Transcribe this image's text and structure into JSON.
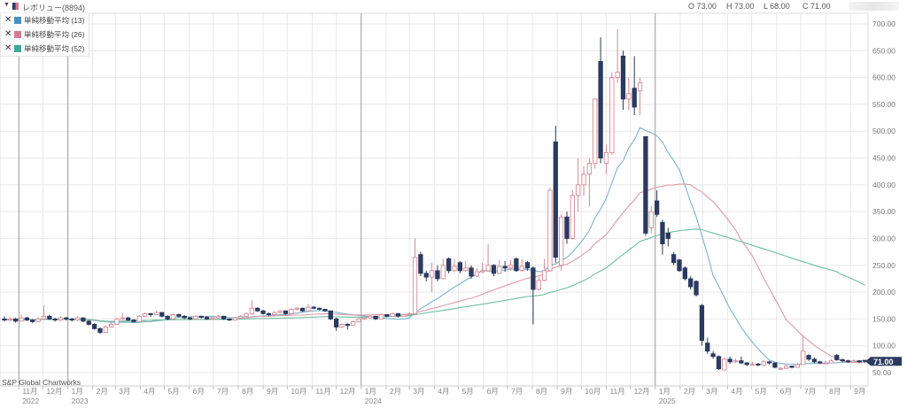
{
  "header": {
    "collapse_icon": "triangle-down-icon",
    "symbol_icon": "candlestick-icon",
    "title": "レボリュー(8894)",
    "ohlc": {
      "open": "O 73.00",
      "high": "H 73.00",
      "low": "L 68.00",
      "close": "C 71.00"
    }
  },
  "legend": [
    {
      "label": "単純移動平均 (13)",
      "period": 13,
      "color": "#4a90c2",
      "line_color": "#7ab3cc"
    },
    {
      "label": "単純移動平均 (26)",
      "period": 26,
      "color": "#d77a8f",
      "line_color": "#dd9aa5"
    },
    {
      "label": "単純移動平均 (52)",
      "period": 52,
      "color": "#3aa99a",
      "line_color": "#6dbf9f"
    }
  ],
  "credit": "S&P Global Chartworks",
  "colors": {
    "up": "#d38a96",
    "down": "#2b3a5e",
    "grid": "#e8e8e8",
    "year_line": "#999999",
    "price_tag": "#2b3a5e"
  },
  "chart_data": {
    "type": "candlestick",
    "interval": "weekly",
    "first_week": "2022-10-14",
    "ylim": [
      25,
      720
    ],
    "yticks": [
      50,
      100,
      150,
      200,
      250,
      300,
      350,
      400,
      450,
      500,
      550,
      600,
      650,
      700
    ],
    "ytick_labels": [
      "50.00",
      "100.00",
      "150.00",
      "200.00",
      "250.00",
      "300.00",
      "350.00",
      "400.00",
      "450.00",
      "500.00",
      "550.00",
      "600.00",
      "650.00",
      "700.00"
    ],
    "last_price_label": "71.00",
    "grid": true,
    "months": [
      {
        "date": "2022-11",
        "label": "11月",
        "year": "2022"
      },
      {
        "date": "2022-12",
        "label": "12月"
      },
      {
        "date": "2023-01",
        "label": "1月",
        "year": "2023"
      },
      {
        "date": "2023-02",
        "label": "2月"
      },
      {
        "date": "2023-03",
        "label": "3月"
      },
      {
        "date": "2023-04",
        "label": "4月"
      },
      {
        "date": "2023-05",
        "label": "5月"
      },
      {
        "date": "2023-06",
        "label": "6月"
      },
      {
        "date": "2023-07",
        "label": "7月"
      },
      {
        "date": "2023-08",
        "label": "8月"
      },
      {
        "date": "2023-09",
        "label": "9月"
      },
      {
        "date": "2023-10",
        "label": "10月"
      },
      {
        "date": "2023-11",
        "label": "11月"
      },
      {
        "date": "2023-12",
        "label": "12月"
      },
      {
        "date": "2024-01",
        "label": "1月",
        "year": "2024"
      },
      {
        "date": "2024-02",
        "label": "2月"
      },
      {
        "date": "2024-03",
        "label": "3月"
      },
      {
        "date": "2024-04",
        "label": "4月"
      },
      {
        "date": "2024-05",
        "label": "5月"
      },
      {
        "date": "2024-06",
        "label": "6月"
      },
      {
        "date": "2024-07",
        "label": "7月"
      },
      {
        "date": "2024-08",
        "label": "8月"
      },
      {
        "date": "2024-09",
        "label": "9月"
      },
      {
        "date": "2024-10",
        "label": "10月"
      },
      {
        "date": "2024-11",
        "label": "11月"
      },
      {
        "date": "2024-12",
        "label": "12月"
      },
      {
        "date": "2025-01",
        "label": "1月",
        "year": "2025"
      },
      {
        "date": "2025-02",
        "label": "2月"
      },
      {
        "date": "2025-03",
        "label": "3月"
      },
      {
        "date": "2025-04",
        "label": "4月"
      },
      {
        "date": "2025-05",
        "label": "5月"
      },
      {
        "date": "2025-06",
        "label": "6月"
      },
      {
        "date": "2025-07",
        "label": "7月"
      },
      {
        "date": "2025-08",
        "label": "8月"
      },
      {
        "date": "2025-09",
        "label": "9月"
      }
    ],
    "ohlc": [
      [
        150,
        155,
        145,
        148
      ],
      [
        148,
        153,
        145,
        150
      ],
      [
        150,
        152,
        143,
        146
      ],
      [
        146,
        158,
        145,
        152
      ],
      [
        152,
        154,
        146,
        148
      ],
      [
        148,
        150,
        142,
        145
      ],
      [
        145,
        153,
        144,
        150
      ],
      [
        150,
        175,
        148,
        155
      ],
      [
        155,
        158,
        148,
        150
      ],
      [
        150,
        152,
        145,
        148
      ],
      [
        148,
        155,
        146,
        152
      ],
      [
        152,
        154,
        147,
        150
      ],
      [
        150,
        152,
        145,
        148
      ],
      [
        148,
        155,
        146,
        152
      ],
      [
        152,
        153,
        144,
        146
      ],
      [
        146,
        148,
        138,
        140
      ],
      [
        140,
        142,
        130,
        132
      ],
      [
        132,
        134,
        122,
        125
      ],
      [
        125,
        138,
        124,
        135
      ],
      [
        135,
        143,
        134,
        140
      ],
      [
        140,
        152,
        139,
        150
      ],
      [
        150,
        160,
        148,
        152
      ],
      [
        152,
        154,
        146,
        148
      ],
      [
        148,
        150,
        143,
        145
      ],
      [
        145,
        157,
        144,
        155
      ],
      [
        155,
        162,
        153,
        160
      ],
      [
        160,
        161,
        154,
        158
      ],
      [
        158,
        165,
        157,
        162
      ],
      [
        162,
        163,
        153,
        155
      ],
      [
        155,
        157,
        148,
        150
      ],
      [
        150,
        160,
        149,
        158
      ],
      [
        158,
        160,
        153,
        155
      ],
      [
        155,
        157,
        150,
        152
      ],
      [
        152,
        154,
        148,
        150
      ],
      [
        150,
        157,
        149,
        155
      ],
      [
        155,
        156,
        151,
        153
      ],
      [
        153,
        155,
        148,
        150
      ],
      [
        150,
        154,
        149,
        152
      ],
      [
        152,
        157,
        151,
        155
      ],
      [
        155,
        156,
        148,
        150
      ],
      [
        150,
        151,
        146,
        148
      ],
      [
        148,
        154,
        147,
        152
      ],
      [
        152,
        157,
        151,
        155
      ],
      [
        155,
        162,
        154,
        160
      ],
      [
        160,
        185,
        158,
        170
      ],
      [
        170,
        172,
        163,
        165
      ],
      [
        165,
        167,
        158,
        160
      ],
      [
        160,
        162,
        155,
        158
      ],
      [
        158,
        165,
        157,
        162
      ],
      [
        162,
        167,
        160,
        165
      ],
      [
        165,
        166,
        158,
        160
      ],
      [
        160,
        170,
        159,
        168
      ],
      [
        168,
        172,
        166,
        170
      ],
      [
        170,
        171,
        163,
        165
      ],
      [
        165,
        178,
        164,
        172
      ],
      [
        172,
        174,
        168,
        170
      ],
      [
        170,
        171,
        166,
        168
      ],
      [
        168,
        169,
        163,
        165
      ],
      [
        165,
        166,
        148,
        150
      ],
      [
        150,
        152,
        128,
        135
      ],
      [
        135,
        142,
        133,
        140
      ],
      [
        140,
        142,
        130,
        138
      ],
      [
        138,
        147,
        137,
        145
      ],
      [
        145,
        152,
        144,
        150
      ],
      [
        150,
        154,
        148,
        152
      ],
      [
        152,
        157,
        150,
        155
      ],
      [
        155,
        156,
        148,
        150
      ],
      [
        150,
        160,
        149,
        158
      ],
      [
        158,
        159,
        153,
        155
      ],
      [
        155,
        162,
        154,
        160
      ],
      [
        160,
        161,
        153,
        155
      ],
      [
        155,
        160,
        154,
        158
      ],
      [
        158,
        162,
        156,
        160
      ],
      [
        160,
        300,
        158,
        265
      ],
      [
        270,
        275,
        230,
        235
      ],
      [
        235,
        240,
        220,
        228
      ],
      [
        228,
        255,
        200,
        240
      ],
      [
        240,
        250,
        220,
        225
      ],
      [
        225,
        262,
        224,
        250
      ],
      [
        262,
        265,
        235,
        240
      ],
      [
        240,
        262,
        238,
        248
      ],
      [
        255,
        258,
        235,
        240
      ],
      [
        240,
        258,
        238,
        245
      ],
      [
        245,
        250,
        225,
        230
      ],
      [
        230,
        245,
        228,
        238
      ],
      [
        238,
        255,
        236,
        240
      ],
      [
        240,
        290,
        238,
        250
      ],
      [
        250,
        252,
        230,
        235
      ],
      [
        235,
        260,
        233,
        248
      ],
      [
        248,
        258,
        238,
        245
      ],
      [
        245,
        260,
        240,
        250
      ],
      [
        262,
        265,
        238,
        240
      ],
      [
        240,
        262,
        238,
        248
      ],
      [
        255,
        258,
        240,
        245
      ],
      [
        245,
        248,
        140,
        205
      ],
      [
        205,
        228,
        203,
        222
      ],
      [
        222,
        262,
        220,
        240
      ],
      [
        240,
        395,
        238,
        390
      ],
      [
        480,
        510,
        255,
        265
      ],
      [
        250,
        345,
        240,
        340
      ],
      [
        340,
        350,
        290,
        300
      ],
      [
        300,
        390,
        298,
        380
      ],
      [
        380,
        450,
        350,
        400
      ],
      [
        400,
        435,
        380,
        420
      ],
      [
        420,
        450,
        360,
        440
      ],
      [
        440,
        560,
        430,
        560
      ],
      [
        630,
        675,
        440,
        450
      ],
      [
        440,
        475,
        420,
        460
      ],
      [
        460,
        610,
        455,
        600
      ],
      [
        600,
        690,
        590,
        610
      ],
      [
        640,
        650,
        540,
        560
      ],
      [
        560,
        600,
        540,
        570
      ],
      [
        580,
        640,
        530,
        545
      ],
      [
        575,
        600,
        530,
        590
      ],
      [
        490,
        490,
        305,
        310
      ],
      [
        320,
        360,
        310,
        350
      ],
      [
        370,
        390,
        340,
        345
      ],
      [
        330,
        335,
        270,
        290
      ],
      [
        310,
        320,
        285,
        300
      ],
      [
        270,
        275,
        250,
        255
      ],
      [
        260,
        262,
        238,
        240
      ],
      [
        245,
        248,
        222,
        225
      ],
      [
        225,
        230,
        205,
        210
      ],
      [
        220,
        222,
        192,
        195
      ],
      [
        175,
        178,
        100,
        110
      ],
      [
        105,
        115,
        85,
        90
      ],
      [
        85,
        90,
        76,
        80
      ],
      [
        80,
        82,
        55,
        57
      ],
      [
        55,
        78,
        54,
        75
      ],
      [
        75,
        80,
        66,
        70
      ],
      [
        70,
        76,
        68,
        72
      ],
      [
        72,
        80,
        66,
        68
      ],
      [
        68,
        70,
        62,
        65
      ],
      [
        65,
        70,
        63,
        66
      ],
      [
        66,
        68,
        62,
        64
      ],
      [
        64,
        74,
        63,
        70
      ],
      [
        70,
        72,
        65,
        68
      ],
      [
        68,
        69,
        58,
        60
      ],
      [
        58,
        61,
        55,
        58
      ],
      [
        58,
        65,
        57,
        62
      ],
      [
        62,
        63,
        58,
        60
      ],
      [
        60,
        68,
        59,
        65
      ],
      [
        65,
        120,
        64,
        90
      ],
      [
        82,
        84,
        72,
        75
      ],
      [
        75,
        78,
        68,
        70
      ],
      [
        70,
        72,
        66,
        68
      ],
      [
        68,
        72,
        66,
        68
      ],
      [
        68,
        75,
        67,
        72
      ],
      [
        82,
        85,
        72,
        74
      ],
      [
        74,
        76,
        70,
        72
      ],
      [
        72,
        74,
        68,
        70
      ],
      [
        70,
        75,
        69,
        72
      ],
      [
        72,
        73,
        68,
        70
      ],
      [
        73,
        73,
        68,
        71
      ]
    ]
  }
}
